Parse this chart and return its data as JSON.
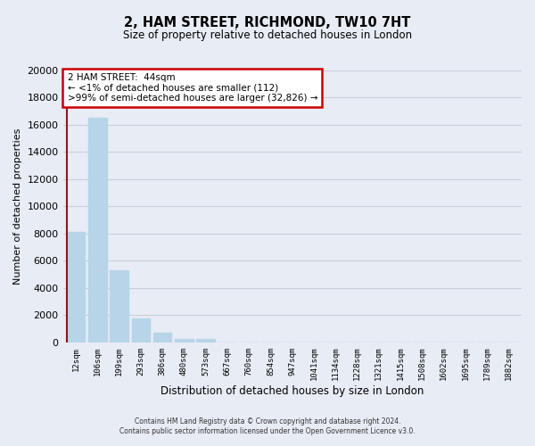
{
  "title": "2, HAM STREET, RICHMOND, TW10 7HT",
  "subtitle": "Size of property relative to detached houses in London",
  "xlabel": "Distribution of detached houses by size in London",
  "ylabel": "Number of detached properties",
  "categories": [
    "12sqm",
    "106sqm",
    "199sqm",
    "293sqm",
    "386sqm",
    "480sqm",
    "573sqm",
    "667sqm",
    "760sqm",
    "854sqm",
    "947sqm",
    "1041sqm",
    "1134sqm",
    "1228sqm",
    "1321sqm",
    "1415sqm",
    "1508sqm",
    "1602sqm",
    "1695sqm",
    "1789sqm",
    "1882sqm"
  ],
  "values": [
    8100,
    16500,
    5300,
    1800,
    750,
    280,
    230,
    0,
    0,
    0,
    0,
    0,
    0,
    0,
    0,
    0,
    0,
    0,
    0,
    0,
    0
  ],
  "bar_color": "#b8d4e8",
  "highlight_color": "#8b1a1a",
  "highlight_bar_index": 0,
  "annotation_title": "2 HAM STREET:  44sqm",
  "annotation_line1": "← <1% of detached houses are smaller (112)",
  "annotation_line2": ">99% of semi-detached houses are larger (32,826) →",
  "annotation_box_color": "#ffffff",
  "annotation_box_edge": "#cc0000",
  "ylim": [
    0,
    20000
  ],
  "yticks": [
    0,
    2000,
    4000,
    6000,
    8000,
    10000,
    12000,
    14000,
    16000,
    18000,
    20000
  ],
  "footer1": "Contains HM Land Registry data © Crown copyright and database right 2024.",
  "footer2": "Contains public sector information licensed under the Open Government Licence v3.0.",
  "bg_color": "#e8ecf5",
  "grid_color": "#c8cfd8"
}
